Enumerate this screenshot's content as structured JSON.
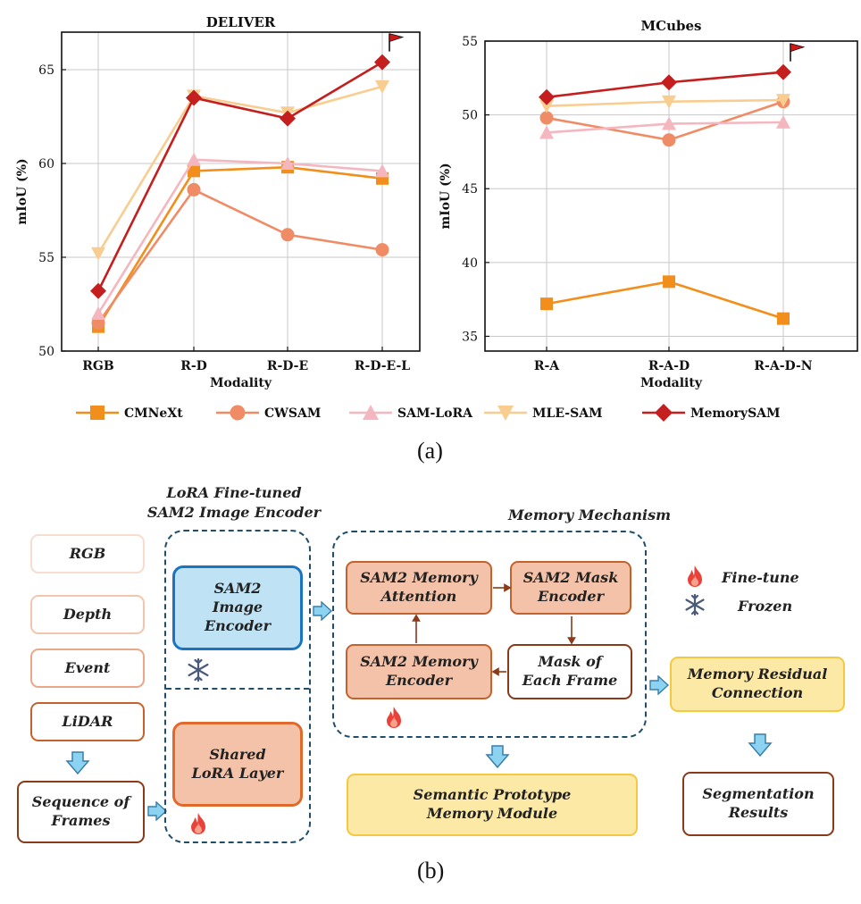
{
  "figure": {
    "caption_a": "(a)",
    "caption_b": "(b)"
  },
  "colors": {
    "CMNeXt": "#f28e1c",
    "CWSAM": "#ef8c66",
    "SAM-LoRA": "#f4b7bf",
    "MLE-SAM": "#f9cd90",
    "MemorySAM": "#c41e1e",
    "dashed_border": "#1f4e6b",
    "blue_box": "#bfe3f5",
    "salmon_box": "#f4c2a8",
    "yellow_box": "#fde9a6"
  },
  "chart_data": [
    {
      "type": "line",
      "title": "DELIVER",
      "xlabel": "Modality",
      "ylabel": "mIoU (%)",
      "categories": [
        "RGB",
        "R-D",
        "R-D-E",
        "R-D-E-L"
      ],
      "ylim": [
        50,
        67
      ],
      "yticks": [
        50,
        55,
        60,
        65
      ],
      "grid": true,
      "series": [
        {
          "name": "CMNeXt",
          "marker": "square",
          "values": [
            51.3,
            59.6,
            59.8,
            59.2
          ]
        },
        {
          "name": "CWSAM",
          "marker": "circle",
          "values": [
            51.5,
            58.6,
            56.2,
            55.4
          ]
        },
        {
          "name": "SAM-LoRA",
          "marker": "triangle-up",
          "values": [
            52.0,
            60.2,
            60.0,
            59.6
          ]
        },
        {
          "name": "MLE-SAM",
          "marker": "triangle-down",
          "values": [
            55.2,
            63.6,
            62.7,
            64.1
          ]
        },
        {
          "name": "MemorySAM",
          "marker": "diamond",
          "values": [
            53.2,
            63.5,
            62.4,
            65.4
          ]
        }
      ],
      "best_marker": "flag"
    },
    {
      "type": "line",
      "title": "MCubes",
      "xlabel": "Modality",
      "ylabel": "mIoU (%)",
      "categories": [
        "R-A",
        "R-A-D",
        "R-A-D-N"
      ],
      "ylim": [
        34,
        55
      ],
      "yticks": [
        35,
        40,
        45,
        50,
        55
      ],
      "grid": true,
      "series": [
        {
          "name": "CMNeXt",
          "marker": "square",
          "values": [
            37.2,
            38.7,
            36.2
          ]
        },
        {
          "name": "CWSAM",
          "marker": "circle",
          "values": [
            49.8,
            48.3,
            50.9
          ]
        },
        {
          "name": "SAM-LoRA",
          "marker": "triangle-up",
          "values": [
            48.8,
            49.4,
            49.5
          ]
        },
        {
          "name": "MLE-SAM",
          "marker": "triangle-down",
          "values": [
            50.6,
            50.9,
            51.0
          ]
        },
        {
          "name": "MemorySAM",
          "marker": "diamond",
          "values": [
            51.2,
            52.2,
            52.9
          ]
        }
      ],
      "best_marker": "flag"
    }
  ],
  "legend": {
    "placement": "bottom",
    "items": [
      "CMNeXt",
      "CWSAM",
      "SAM-LoRA",
      "MLE-SAM",
      "MemorySAM"
    ]
  },
  "diagram": {
    "modalities": [
      "RGB",
      "Depth",
      "Event",
      "LiDAR"
    ],
    "sequence_box": "Sequence of Frames",
    "encoder_group_title": "LoRA Fine-tuned SAM2 Image Encoder",
    "image_encoder": "SAM2 Image Encoder",
    "lora_layer": "Shared LoRA Layer",
    "memory_group_title": "Memory Mechanism",
    "memory_attention": "SAM2 Memory Attention",
    "mask_encoder": "SAM2 Mask Encoder",
    "memory_encoder": "SAM2 Memory Encoder",
    "mask_each_frame": "Mask of Each Frame",
    "residual": "Memory Residual Connection",
    "prototype": "Semantic Prototype Memory Module",
    "segmentation": "Segmentation Results",
    "legend_finetune": "Fine-tune",
    "legend_frozen": "Frozen",
    "icons": [
      "fire-icon",
      "snowflake-icon"
    ]
  }
}
